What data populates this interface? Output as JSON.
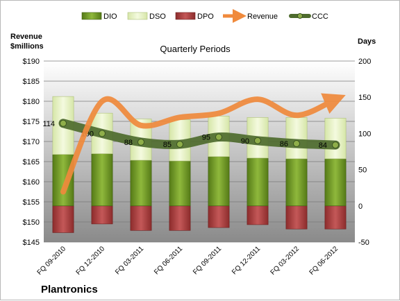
{
  "chart_data": {
    "type": "bar",
    "subtitle": "Quarterly Periods",
    "company": "Plantronics",
    "ylabel_left": [
      "Revenue",
      "$millions"
    ],
    "ylabel_right": "Days",
    "ylim_left": [
      145,
      190
    ],
    "yticks_left": [
      "$145",
      "$150",
      "$155",
      "$160",
      "$165",
      "$170",
      "$175",
      "$180",
      "$185",
      "$190"
    ],
    "ylim_right": [
      -50,
      200
    ],
    "yticks_right": [
      "-50",
      "0",
      "50",
      "100",
      "150",
      "200"
    ],
    "categories": [
      "FQ 09-2010",
      "FQ 12-2010",
      "FQ 03-2011",
      "FQ 06-2011",
      "FQ 09-2011",
      "FQ 12-2011",
      "FQ 03-2012",
      "FQ 06-2012"
    ],
    "series": [
      {
        "name": "DIO",
        "type": "stacked-bar",
        "axis": "right",
        "color": "#6b8e23",
        "values": [
          71,
          72,
          63,
          62,
          68,
          66,
          65,
          65
        ]
      },
      {
        "name": "DSO",
        "type": "stacked-bar",
        "axis": "right",
        "color": "#e6f2c4",
        "values": [
          80,
          56,
          57,
          57,
          56,
          56,
          57,
          56
        ]
      },
      {
        "name": "DPO",
        "type": "stacked-bar-negative",
        "axis": "right",
        "color": "#b04040",
        "values": [
          -37,
          -25,
          -34,
          -34,
          -30,
          -26,
          -32,
          -32
        ]
      },
      {
        "name": "Revenue",
        "type": "line",
        "axis": "left",
        "color": "#f08a3c",
        "values": [
          157.5,
          180,
          174,
          176,
          177,
          180.5,
          176.5,
          180.5
        ]
      },
      {
        "name": "CCC",
        "type": "line",
        "axis": "right",
        "color": "#4e6b2e",
        "values": [
          114,
          100,
          88,
          85,
          95,
          90,
          86,
          84
        ]
      }
    ],
    "ccc_labels": [
      "114",
      "100",
      "88",
      "85",
      "95",
      "90",
      "86",
      "84"
    ],
    "legend_position": "top"
  }
}
